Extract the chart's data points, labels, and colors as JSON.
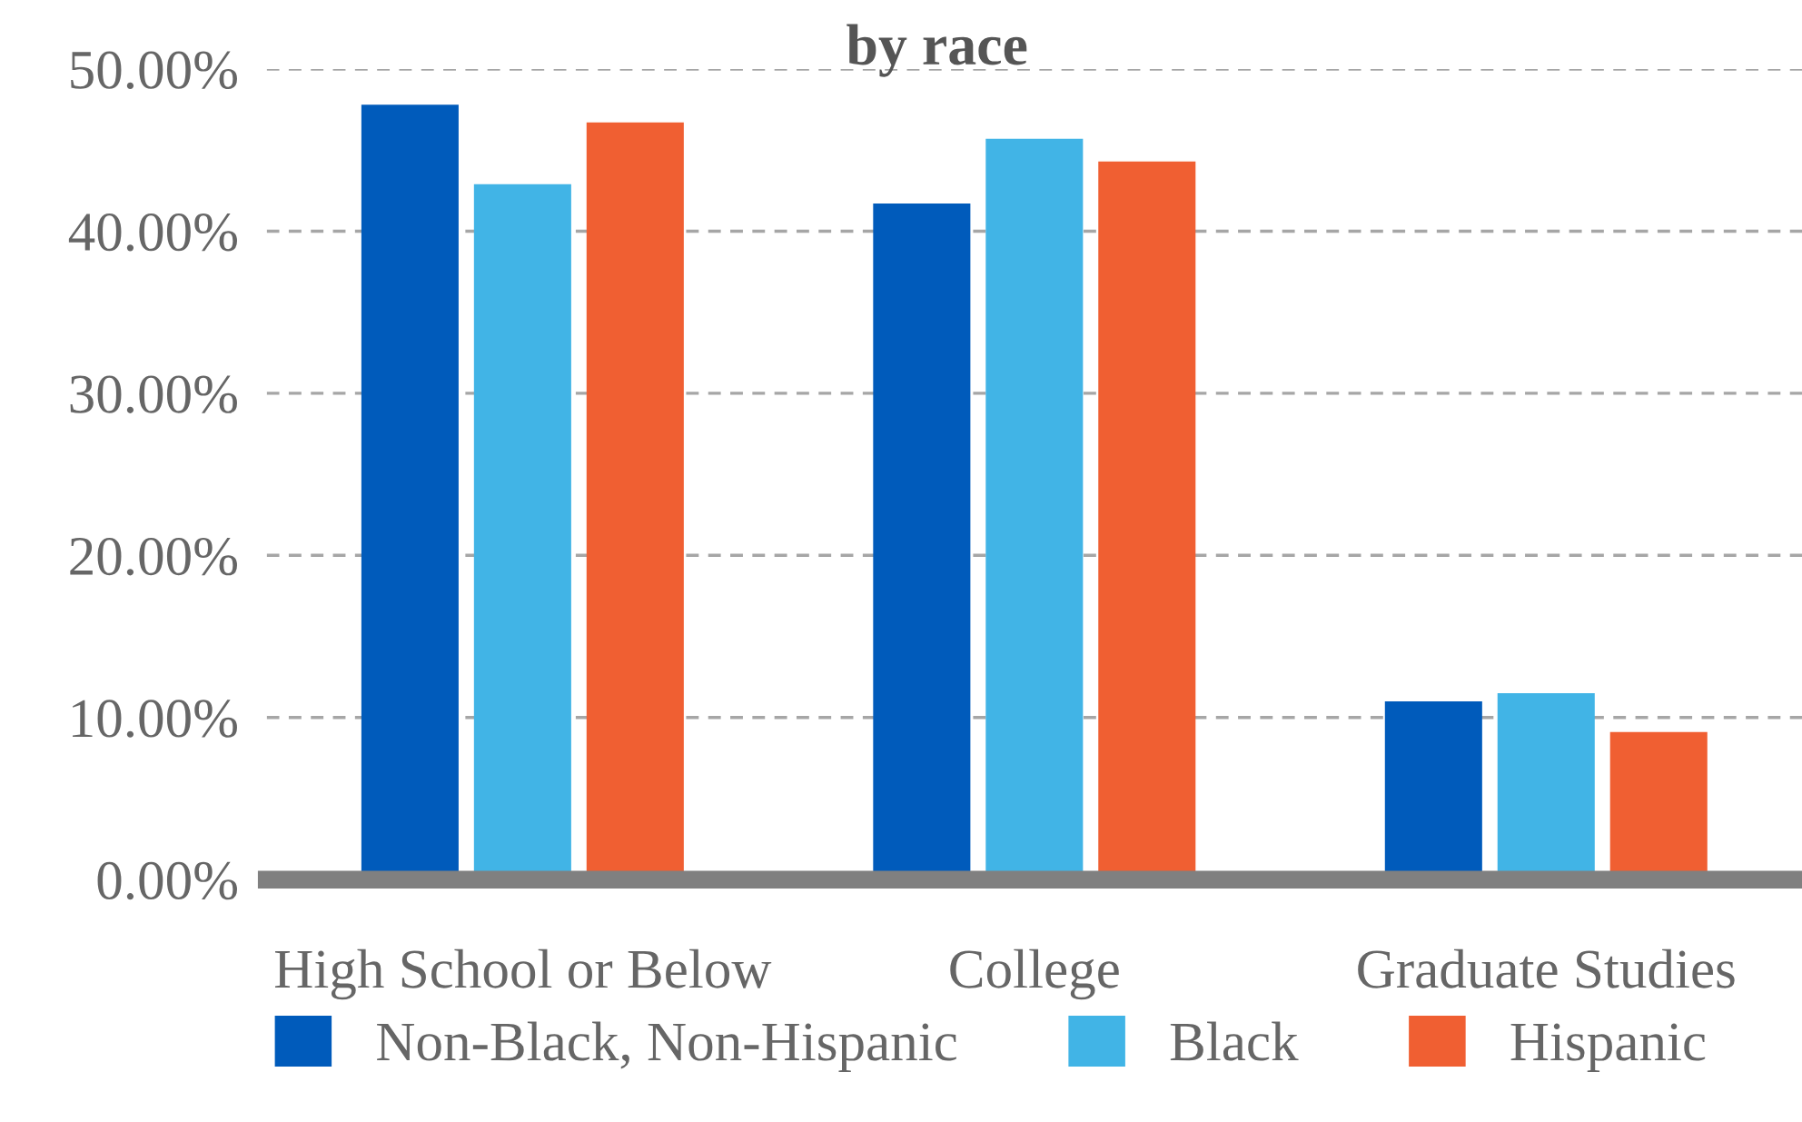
{
  "chart_data": {
    "type": "bar",
    "title": "by race",
    "categories": [
      "High School or Below",
      "College",
      "Graduate Studies"
    ],
    "series": [
      {
        "name": "Non-Black, Non-Hispanic",
        "color": "#005bbb",
        "values": [
          47.8,
          41.7,
          11.0
        ]
      },
      {
        "name": "Black",
        "color": "#41b4e6",
        "values": [
          42.9,
          45.7,
          11.5
        ]
      },
      {
        "name": "Hispanic",
        "color": "#f05f32",
        "values": [
          46.7,
          44.3,
          9.1
        ]
      }
    ],
    "ylim": [
      0,
      50
    ],
    "yticks": [
      {
        "value": 0,
        "label": "0.00%"
      },
      {
        "value": 10,
        "label": "10.00%"
      },
      {
        "value": 20,
        "label": "20.00%"
      },
      {
        "value": 30,
        "label": "30.00%"
      },
      {
        "value": 40,
        "label": "40.00%"
      },
      {
        "value": 50,
        "label": "50.00%"
      }
    ],
    "grid": "y",
    "legend": "bottom"
  }
}
